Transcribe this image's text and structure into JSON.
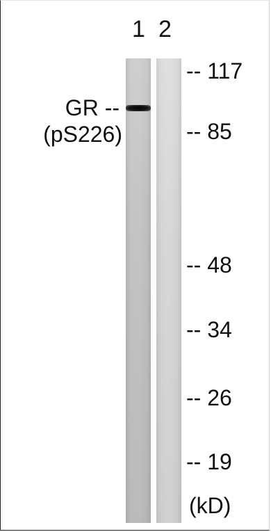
{
  "lanes": [
    {
      "label": "1"
    },
    {
      "label": "2"
    }
  ],
  "protein": {
    "name": "GR --",
    "modification": "(pS226)"
  },
  "markers": [
    {
      "label": "-- 117",
      "value_kd": 117
    },
    {
      "label": "-- 85",
      "value_kd": 85
    },
    {
      "label": "-- 48",
      "value_kd": 48
    },
    {
      "label": "-- 34",
      "value_kd": 34
    },
    {
      "label": "-- 26",
      "value_kd": 26
    },
    {
      "label": "-- 19",
      "value_kd": 19
    }
  ],
  "unit": "(kD)",
  "colors": {
    "band": "#0a0a0a",
    "lane_1": "#c8c8c8",
    "lane_2": "#d8d8d8",
    "text": "#111111"
  }
}
